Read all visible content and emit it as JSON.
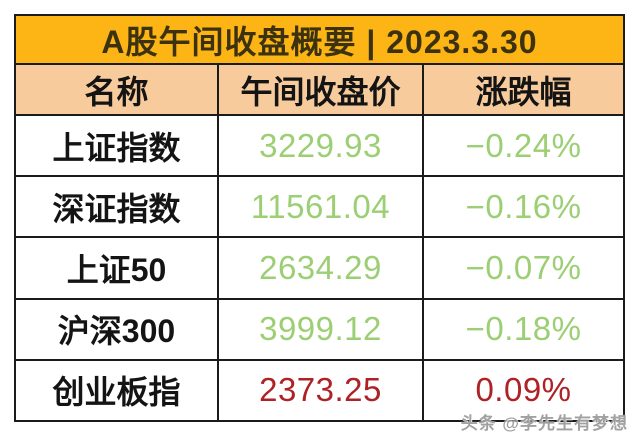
{
  "header": {
    "title": "A股午间收盘概要 | 2023.3.30"
  },
  "columns": [
    "名称",
    "午间收盘价",
    "涨跌幅"
  ],
  "rows": [
    {
      "name": "上证指数",
      "price": "3229.93",
      "change": "−0.24%",
      "direction": "down"
    },
    {
      "name": "深证指数",
      "price": "11561.04",
      "change": "−0.16%",
      "direction": "down"
    },
    {
      "name": "上证50",
      "price": "2634.29",
      "change": "−0.07%",
      "direction": "down"
    },
    {
      "name": "沪深300",
      "price": "3999.12",
      "change": "−0.18%",
      "direction": "down"
    },
    {
      "name": "创业板指",
      "price": "2373.25",
      "change": "0.09%",
      "direction": "up"
    }
  ],
  "watermark": {
    "text": "头条 @李先生有梦想"
  },
  "colors": {
    "page_bg": "#ffffff",
    "header_bg": "#fcb514",
    "subheader_bg": "#f8cb9d",
    "border": "#1b1b1b",
    "title_text": "#3d320f",
    "down_green": "#9ccf74",
    "up_red": "#ae2127"
  },
  "chart_data": {
    "type": "table",
    "title": "A股午间收盘概要 | 2023.3.30",
    "columns": [
      "名称",
      "午间收盘价",
      "涨跌幅"
    ],
    "rows": [
      [
        "上证指数",
        3229.93,
        "-0.24%"
      ],
      [
        "深证指数",
        11561.04,
        "-0.16%"
      ],
      [
        "上证50",
        2634.29,
        "-0.07%"
      ],
      [
        "沪深300",
        3999.12,
        "-0.18%"
      ],
      [
        "创业板指",
        2373.25,
        "0.09%"
      ]
    ],
    "notes_colors": "declines shown in green (#9ccf74), gains shown in red (#ae2127) per Chinese market convention"
  }
}
